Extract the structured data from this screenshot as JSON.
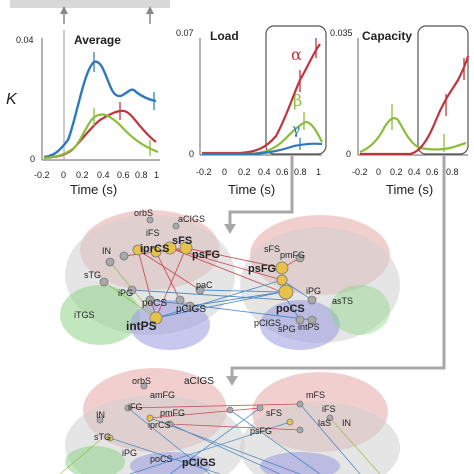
{
  "colors": {
    "alpha": "#c0353c",
    "beta": "#8cbd3a",
    "gamma": "#2f78bc",
    "frontal": "#e8a7a7",
    "temporal": "#8fd48a",
    "parietal": "#9a9ae0",
    "cortex": "#c9c9c9",
    "node_yellow": "#e7c24a",
    "node_gray": "#a9a9a9"
  },
  "panels": {
    "average": {
      "title": "Average",
      "ylabel": "K",
      "ytop": "0.04",
      "ybottom": "0",
      "xlabel": "Time (s)",
      "xticks": [
        "-0.2",
        "0",
        "0.2",
        "0.4",
        "0.6",
        "0.8",
        "1"
      ]
    },
    "load": {
      "title": "Load",
      "ytop": "0.07",
      "ybottom": "0",
      "xlabel": "Time (s)",
      "xticks": [
        "-0.2",
        "0",
        "0.2",
        "0.4",
        "0.6",
        "0.8",
        "1"
      ],
      "greek": {
        "alpha": "α",
        "beta": "β",
        "gamma": "γ"
      }
    },
    "capacity": {
      "title": "Capacity",
      "ytop": "0.035",
      "ybottom": "0",
      "xlabel": "Time (s)",
      "xticks": [
        "-0.2",
        "0",
        "0.2",
        "0.4",
        "0.6",
        "0.8"
      ]
    }
  },
  "brain1": {
    "labels": {
      "orbS": "orbS",
      "aCIGS": "aCIGS",
      "iFS": "iFS",
      "iprCS": "iprCS",
      "sFS": "sFS",
      "psFG": "psFG",
      "IN": "IN",
      "sTG": "sTG",
      "iPG": "iPG",
      "paC": "paC",
      "poCS": "poCS",
      "pCIGS": "pCIGS",
      "iTGS": "iTGS",
      "intPS": "intPS",
      "r_sFS": "sFS",
      "r_pmFG": "pmFG",
      "r_psFG": "psFG",
      "r_poCS": "poCS",
      "r_iPG": "iPG",
      "r_asTS": "asTS",
      "r_pCIGS": "pCIGS",
      "r_sPG": "sPG",
      "r_intPS": "intPS"
    }
  },
  "brain2": {
    "labels": {
      "orbS": "orbS",
      "aCIGS": "aCIGS",
      "amFG": "amFG",
      "IN": "IN",
      "iFG": "iFG",
      "pmFG": "pmFG",
      "iprCS": "iprCS",
      "sTG": "sTG",
      "iPG": "iPG",
      "poCS": "poCS",
      "pCIGS": "pCIGS",
      "r_mFS": "mFS",
      "r_iFS": "iFS",
      "r_sFS": "sFS",
      "r_laS": "laS",
      "r_IN": "IN",
      "r_psFG": "psFG"
    }
  }
}
